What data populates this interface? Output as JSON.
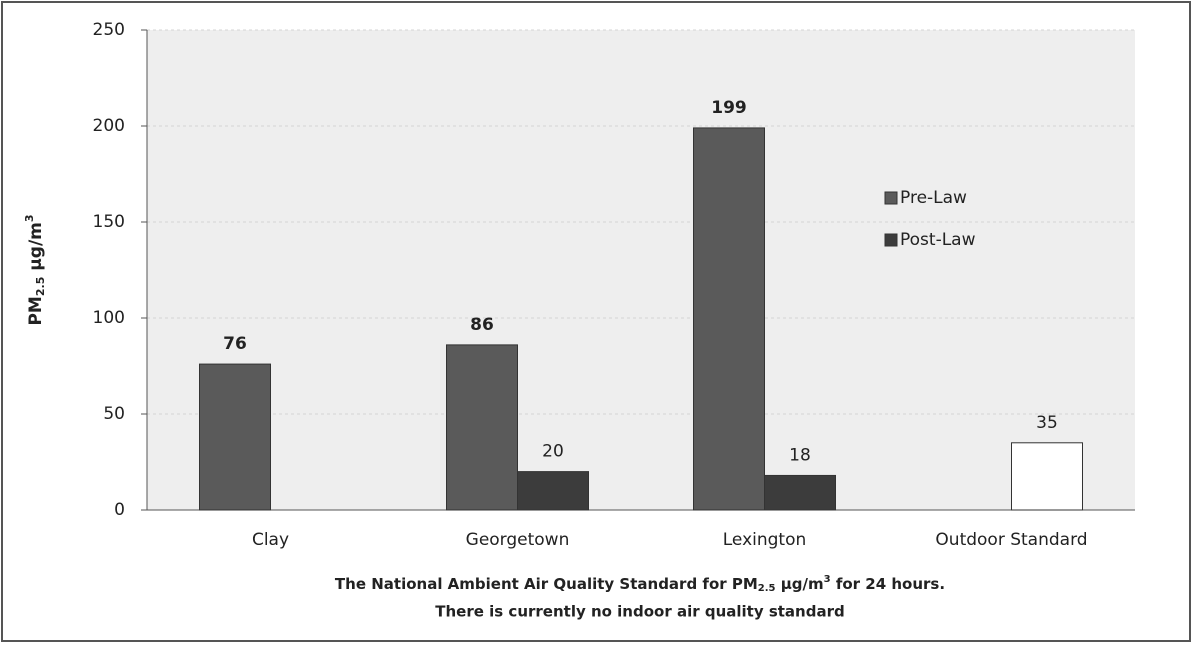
{
  "chart_data": {
    "type": "bar",
    "categories": [
      "Clay",
      "Georgetown",
      "Lexington",
      "Outdoor Standard"
    ],
    "series": [
      {
        "name": "Pre-Law",
        "color": "#5a5a5a",
        "values": [
          76,
          86,
          199,
          null
        ]
      },
      {
        "name": "Post-Law",
        "color": "#3c3c3c",
        "values": [
          null,
          20,
          18,
          35
        ],
        "colors": [
          "#3c3c3c",
          "#3c3c3c",
          "#3c3c3c",
          "#ffffff"
        ]
      }
    ],
    "ylabel": {
      "main": "PM",
      "sub": "2.5",
      "unit": " µg/m",
      "sup": "3"
    },
    "note": [
      {
        "main": "The National Ambient Air Quality Standard for PM",
        "sub": "2.5",
        "unit": " µg/m",
        "sup": "3",
        "rest": " for 24 hours."
      },
      {
        "main": "There is currently no indoor air quality standard"
      }
    ],
    "ylim": [
      0,
      250
    ],
    "yticks": [
      0,
      50,
      100,
      150,
      200,
      250
    ],
    "grid": true,
    "legend": "right"
  }
}
